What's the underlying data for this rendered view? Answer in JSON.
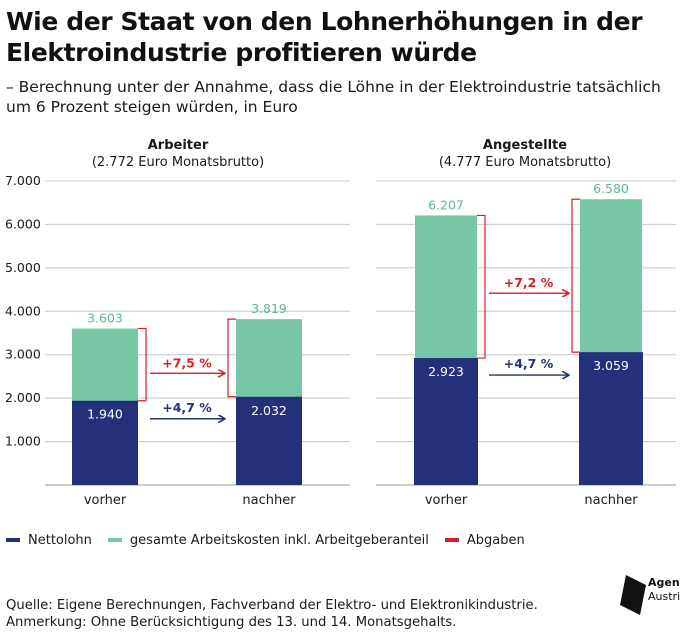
{
  "title": "Wie der Staat von den Lohnerhöhungen in der Elektroindustrie profitieren würde",
  "subtitle": "–  Berechnung unter der Annahme, dass die Löhne in der Elektroindustrie tatsächlich um 6 Prozent steigen würden, in Euro",
  "legend": {
    "netto": "Nettolohn",
    "kosten": "gesamte Arbeitskosten inkl. Arbeitgeberanteil",
    "abgaben": "Abgaben"
  },
  "source": "Quelle: Eigene Berechnungen, Fachverband der Elektro- und Elektronikindustrie.",
  "note": "Anmerkung: Ohne Berücksichtigung des 13. und 14. Monatsgehalts.",
  "logo": {
    "line1": "Agenda",
    "line2": "Austria"
  },
  "colors": {
    "netto": "#25307a",
    "kosten": "#77c6a6",
    "abgaben": "#d91e2a",
    "netto_label": "#25307a",
    "kosten_label": "#5fb994"
  },
  "chart_data": [
    {
      "type": "bar",
      "title": "Arbeiter",
      "subtitle": "(2.772 Euro Monatsbrutto)",
      "categories": [
        "vorher",
        "nachher"
      ],
      "series": [
        {
          "name": "gesamte Arbeitskosten inkl. Arbeitgeberanteil",
          "values": [
            3603,
            3819
          ],
          "labels": [
            "3.603",
            "3.819"
          ]
        },
        {
          "name": "Nettolohn",
          "values": [
            1940,
            2032
          ],
          "labels": [
            "1.940",
            "2.032"
          ]
        }
      ],
      "changes": {
        "abgaben": "+7,5 %",
        "netto": "+4,7 %"
      },
      "yticks": [
        "1.000",
        "2.000",
        "3.000",
        "4.000",
        "5.000",
        "6.000",
        "7.000"
      ],
      "ytick_values": [
        1000,
        2000,
        3000,
        4000,
        5000,
        6000,
        7000
      ],
      "ylim": [
        0,
        7000
      ],
      "grid": true
    },
    {
      "type": "bar",
      "title": "Angestellte",
      "subtitle": "(4.777 Euro Monatsbrutto)",
      "categories": [
        "vorher",
        "nachher"
      ],
      "series": [
        {
          "name": "gesamte Arbeitskosten inkl. Arbeitgeberanteil",
          "values": [
            6207,
            6580
          ],
          "labels": [
            "6.207",
            "6.580"
          ]
        },
        {
          "name": "Nettolohn",
          "values": [
            2923,
            3059
          ],
          "labels": [
            "2.923",
            "3.059"
          ]
        }
      ],
      "changes": {
        "abgaben": "+7,2 %",
        "netto": "+4,7 %"
      },
      "ylim": [
        0,
        7000
      ],
      "grid": true
    }
  ]
}
